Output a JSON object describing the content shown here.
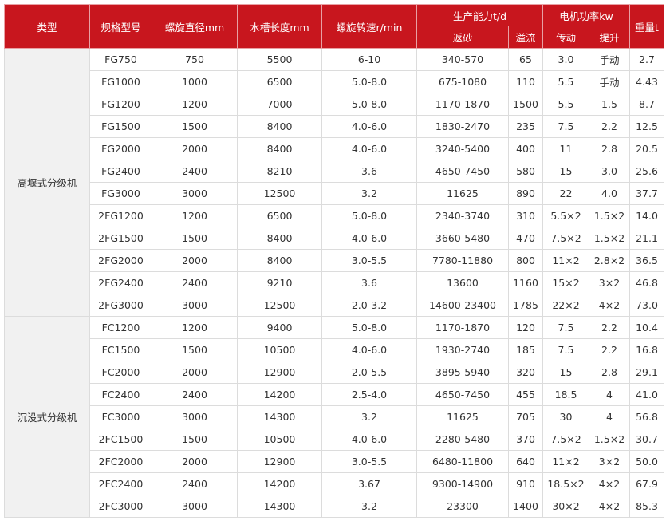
{
  "table": {
    "header": {
      "type": "类型",
      "model": "规格型号",
      "diameter": "螺旋直径mm",
      "length": "水槽长度mm",
      "speed": "螺旋转速r/min",
      "capacity": {
        "title": "生产能力t/d",
        "sand": "返砂",
        "overflow": "溢流"
      },
      "motor": {
        "title": "电机功率kw",
        "drive": "传动",
        "lift": "提升"
      },
      "weight": "重量t"
    },
    "groups": [
      {
        "label": "高堰式分级机",
        "rows": [
          [
            "FG750",
            "750",
            "5500",
            "6-10",
            "340-570",
            "65",
            "3.0",
            "手动",
            "2.7"
          ],
          [
            "FG1000",
            "1000",
            "6500",
            "5.0-8.0",
            "675-1080",
            "110",
            "5.5",
            "手动",
            "4.43"
          ],
          [
            "FG1200",
            "1200",
            "7000",
            "5.0-8.0",
            "1170-1870",
            "1500",
            "5.5",
            "1.5",
            "8.7"
          ],
          [
            "FG1500",
            "1500",
            "8400",
            "4.0-6.0",
            "1830-2470",
            "235",
            "7.5",
            "2.2",
            "12.5"
          ],
          [
            "FG2000",
            "2000",
            "8400",
            "4.0-6.0",
            "3240-5400",
            "400",
            "11",
            "2.8",
            "20.5"
          ],
          [
            "FG2400",
            "2400",
            "8210",
            "3.6",
            "4650-7450",
            "580",
            "15",
            "3.0",
            "25.6"
          ],
          [
            "FG3000",
            "3000",
            "12500",
            "3.2",
            "11625",
            "890",
            "22",
            "4.0",
            "37.7"
          ],
          [
            "2FG1200",
            "1200",
            "6500",
            "5.0-8.0",
            "2340-3740",
            "310",
            "5.5×2",
            "1.5×2",
            "14.0"
          ],
          [
            "2FG1500",
            "1500",
            "8400",
            "4.0-6.0",
            "3660-5480",
            "470",
            "7.5×2",
            "1.5×2",
            "21.1"
          ],
          [
            "2FG2000",
            "2000",
            "8400",
            "3.0-5.5",
            "7780-11880",
            "800",
            "11×2",
            "2.8×2",
            "36.5"
          ],
          [
            "2FG2400",
            "2400",
            "9210",
            "3.6",
            "13600",
            "1160",
            "15×2",
            "3×2",
            "46.8"
          ],
          [
            "2FG3000",
            "3000",
            "12500",
            "2.0-3.2",
            "14600-23400",
            "1785",
            "22×2",
            "4×2",
            "73.0"
          ]
        ]
      },
      {
        "label": "沉没式分级机",
        "rows": [
          [
            "FC1200",
            "1200",
            "9400",
            "5.0-8.0",
            "1170-1870",
            "120",
            "7.5",
            "2.2",
            "10.4"
          ],
          [
            "FC1500",
            "1500",
            "10500",
            "4.0-6.0",
            "1930-2740",
            "185",
            "7.5",
            "2.2",
            "16.8"
          ],
          [
            "FC2000",
            "2000",
            "12900",
            "2.0-5.5",
            "3895-5940",
            "320",
            "15",
            "2.8",
            "29.1"
          ],
          [
            "FC2400",
            "2400",
            "14200",
            "2.5-4.0",
            "4650-7450",
            "455",
            "18.5",
            "4",
            "41.0"
          ],
          [
            "FC3000",
            "3000",
            "14300",
            "3.2",
            "11625",
            "705",
            "30",
            "4",
            "56.8"
          ],
          [
            "2FC1500",
            "1500",
            "10500",
            "4.0-6.0",
            "2280-5480",
            "370",
            "7.5×2",
            "1.5×2",
            "30.7"
          ],
          [
            "2FC2000",
            "2000",
            "12900",
            "3.0-5.5",
            "6480-11800",
            "640",
            "11×2",
            "3×2",
            "50.0"
          ],
          [
            "2FC2400",
            "2400",
            "14200",
            "3.67",
            "9300-14900",
            "910",
            "18.5×2",
            "4×2",
            "67.9"
          ],
          [
            "2FC3000",
            "3000",
            "14300",
            "3.2",
            "23300",
            "1400",
            "30×2",
            "4×2",
            "85.3"
          ]
        ]
      }
    ]
  }
}
